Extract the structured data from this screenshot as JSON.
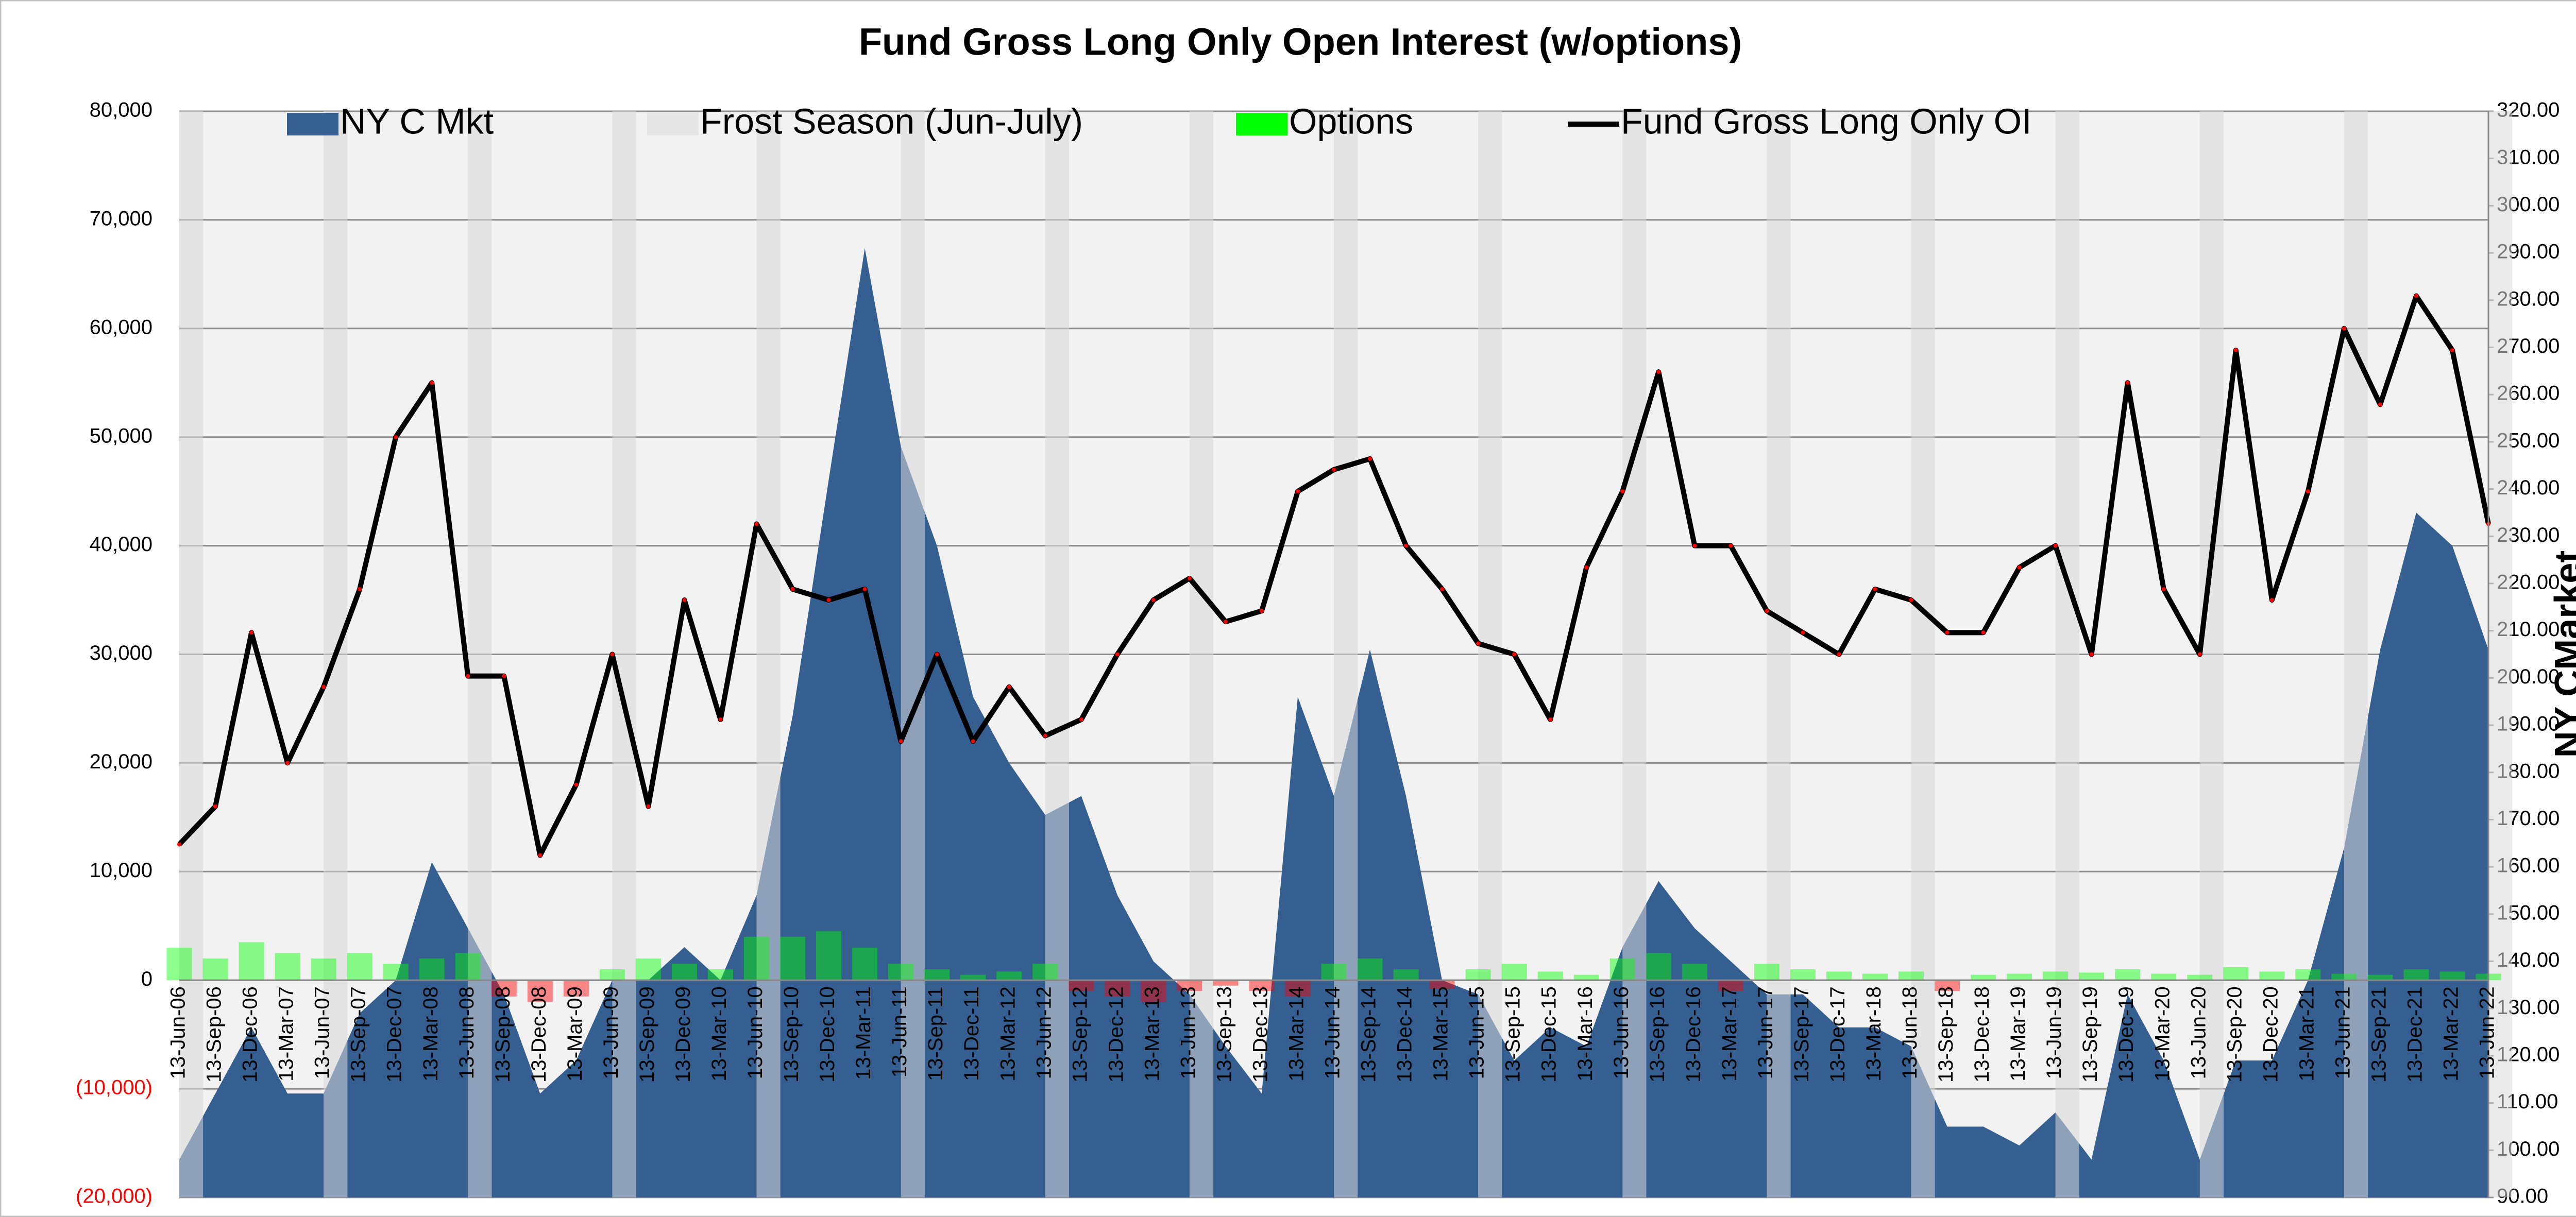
{
  "chart_data": {
    "type": "combo",
    "title": "Fund Gross Long Only Open Interest (w/options)",
    "y2_label": "NY CMarket",
    "categories": [
      "13-Jun-06",
      "13-Sep-06",
      "13-Dec-06",
      "13-Mar-07",
      "13-Jun-07",
      "13-Sep-07",
      "13-Dec-07",
      "13-Mar-08",
      "13-Jun-08",
      "13-Sep-08",
      "13-Dec-08",
      "13-Mar-09",
      "13-Jun-09",
      "13-Sep-09",
      "13-Dec-09",
      "13-Mar-10",
      "13-Jun-10",
      "13-Sep-10",
      "13-Dec-10",
      "13-Mar-11",
      "13-Jun-11",
      "13-Sep-11",
      "13-Dec-11",
      "13-Mar-12",
      "13-Jun-12",
      "13-Sep-12",
      "13-Dec-12",
      "13-Mar-13",
      "13-Jun-13",
      "13-Sep-13",
      "13-Dec-13",
      "13-Mar-14",
      "13-Jun-14",
      "13-Sep-14",
      "13-Dec-14",
      "13-Mar-15",
      "13-Jun-15",
      "13-Sep-15",
      "13-Dec-15",
      "13-Mar-16",
      "13-Jun-16",
      "13-Sep-16",
      "13-Dec-16",
      "13-Mar-17",
      "13-Jun-17",
      "13-Sep-17",
      "13-Dec-17",
      "13-Mar-18",
      "13-Jun-18",
      "13-Sep-18",
      "13-Dec-18",
      "13-Mar-19",
      "13-Jun-19",
      "13-Sep-19",
      "13-Dec-19",
      "13-Mar-20",
      "13-Jun-20",
      "13-Sep-20",
      "13-Dec-20",
      "13-Mar-21",
      "13-Jun-21",
      "13-Sep-21",
      "13-Dec-21",
      "13-Mar-22",
      "13-Jun-22"
    ],
    "series": [
      {
        "name": "NY C Mkt",
        "kind": "area",
        "axis": "y2",
        "color": "#355e91",
        "values": [
          98,
          112,
          126,
          112,
          112,
          129,
          136,
          161,
          147,
          133,
          112,
          119,
          136,
          136,
          143,
          136,
          154,
          192,
          242,
          291,
          249,
          228,
          196,
          182,
          171,
          175,
          154,
          140,
          133,
          122,
          112,
          196,
          175,
          206,
          175,
          136,
          133,
          119,
          126,
          122,
          143,
          157,
          147,
          140,
          133,
          133,
          126,
          126,
          122,
          105,
          105,
          101,
          108,
          98,
          133,
          119,
          98,
          119,
          119,
          136,
          164,
          206,
          235,
          228,
          206
        ]
      },
      {
        "name": "Frost Season (Jun-July)",
        "kind": "season",
        "month": "Jun",
        "color": "#d9d9d9"
      },
      {
        "name": "Options",
        "kind": "bar",
        "color": "#00ff00",
        "negative_color": "#ff0000",
        "values": [
          3000,
          2000,
          3500,
          2500,
          2000,
          2500,
          1500,
          2000,
          2500,
          -1500,
          -2000,
          -1500,
          1000,
          2000,
          1500,
          1000,
          4000,
          4000,
          4500,
          3000,
          1500,
          1000,
          500,
          800,
          1500,
          -1000,
          -1500,
          -2000,
          -1000,
          -500,
          -1000,
          -1500,
          1500,
          2000,
          1000,
          -800,
          1000,
          1500,
          800,
          500,
          2000,
          2500,
          1500,
          -1000,
          1500,
          1000,
          800,
          600,
          800,
          -1000,
          500,
          600,
          800,
          700,
          1000,
          600,
          500,
          1200,
          800,
          1000,
          600,
          500,
          1000,
          800,
          600
        ]
      },
      {
        "name": "Fund Gross Long Only OI",
        "kind": "line",
        "color": "#000000",
        "marker_color": "#ff0000",
        "values": [
          12500,
          16000,
          32000,
          20000,
          27000,
          36000,
          50000,
          55000,
          28000,
          28000,
          11500,
          18000,
          30000,
          16000,
          35000,
          24000,
          42000,
          36000,
          35000,
          36000,
          22000,
          30000,
          22000,
          27000,
          22500,
          24000,
          30000,
          35000,
          37000,
          33000,
          34000,
          45000,
          47000,
          48000,
          40000,
          36000,
          31000,
          30000,
          24000,
          38000,
          45000,
          56000,
          40000,
          40000,
          34000,
          32000,
          30000,
          36000,
          35000,
          32000,
          32000,
          38000,
          40000,
          30000,
          55000,
          36000,
          30000,
          58000,
          35000,
          45000,
          60000,
          53000,
          63000,
          58000,
          42000
        ]
      }
    ],
    "ylim": [
      -20000,
      80000
    ],
    "yticks": [
      {
        "value": -20000,
        "label": "(20,000)"
      },
      {
        "value": -10000,
        "label": "(10,000)"
      },
      0,
      {
        "value": 10000,
        "label": "10,000"
      },
      {
        "value": 20000,
        "label": "20,000"
      },
      {
        "value": 30000,
        "label": "30,000"
      },
      {
        "value": 40000,
        "label": "40,000"
      },
      {
        "value": 50000,
        "label": "50,000"
      },
      {
        "value": 60000,
        "label": "60,000"
      },
      {
        "value": 70000,
        "label": "70,000"
      },
      {
        "value": 80000,
        "label": "80,000"
      }
    ],
    "negative_tick_color": "#ff0000",
    "y2lim": [
      90,
      320
    ],
    "y2ticks": [
      {
        "value": 90,
        "label": "90.00"
      },
      {
        "value": 100,
        "label": "100.00"
      },
      {
        "value": 110,
        "label": "110.00"
      },
      {
        "value": 120,
        "label": "120.00"
      },
      {
        "value": 130,
        "label": "130.00"
      },
      {
        "value": 140,
        "label": "140.00"
      },
      {
        "value": 150,
        "label": "150.00"
      },
      {
        "value": 160,
        "label": "160.00"
      },
      {
        "value": 170,
        "label": "170.00"
      },
      {
        "value": 180,
        "label": "180.00"
      },
      {
        "value": 190,
        "label": "190.00"
      },
      {
        "value": 200,
        "label": "200.00"
      },
      {
        "value": 210,
        "label": "210.00"
      },
      {
        "value": 220,
        "label": "220.00"
      },
      {
        "value": 230,
        "label": "230.00"
      },
      {
        "value": 240,
        "label": "240.00"
      },
      {
        "value": 250,
        "label": "250.00"
      },
      {
        "value": 260,
        "label": "260.00"
      },
      {
        "value": 270,
        "label": "270.00"
      },
      {
        "value": 280,
        "label": "280.00"
      },
      {
        "value": 290,
        "label": "290.00"
      },
      {
        "value": 300,
        "label": "300.00"
      },
      {
        "value": 310,
        "label": "310.00"
      },
      {
        "value": 320,
        "label": "320.00"
      }
    ],
    "grid": true,
    "legend": "top"
  }
}
